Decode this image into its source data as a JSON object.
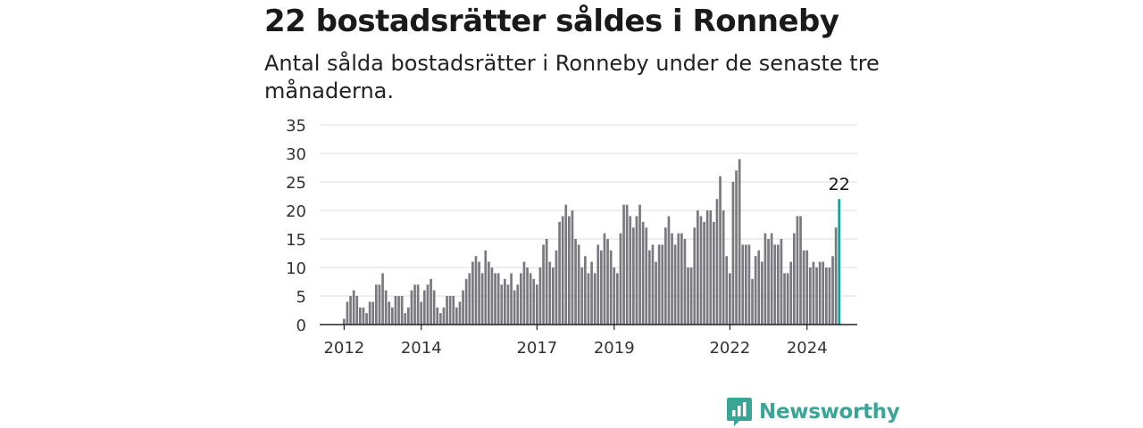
{
  "title": "22 bostadsrätter såldes i Ronneby",
  "subtitle": "Antal sålda bostadsrätter i Ronneby under de senaste tre månaderna.",
  "brand": "Newsworthy",
  "colors": {
    "bar": "#7b7980",
    "highlight": "#13a497",
    "brand": "#3aa597"
  },
  "chart_data": {
    "type": "bar",
    "title": "22 bostadsrätter såldes i Ronneby",
    "xlabel": "",
    "ylabel": "",
    "ylim": [
      0,
      35
    ],
    "yticks": [
      "0",
      "5",
      "10",
      "15",
      "20",
      "25",
      "30",
      "35"
    ],
    "xticks": [
      "2012",
      "2014",
      "2017",
      "2019",
      "2022",
      "2024"
    ],
    "grid": true,
    "start": "2012-01",
    "interval": "month",
    "highlight_label": "22",
    "values": [
      1,
      4,
      5,
      6,
      5,
      3,
      3,
      2,
      4,
      4,
      7,
      7,
      9,
      6,
      4,
      3,
      5,
      5,
      5,
      2,
      3,
      6,
      7,
      7,
      4,
      6,
      7,
      8,
      6,
      3,
      2,
      3,
      5,
      5,
      5,
      3,
      4,
      6,
      8,
      9,
      11,
      12,
      11,
      9,
      13,
      11,
      10,
      9,
      9,
      7,
      8,
      7,
      9,
      6,
      7,
      9,
      11,
      10,
      9,
      8,
      7,
      10,
      14,
      15,
      11,
      10,
      13,
      18,
      19,
      21,
      19,
      20,
      15,
      14,
      10,
      12,
      9,
      11,
      9,
      14,
      13,
      16,
      15,
      13,
      10,
      9,
      16,
      21,
      21,
      19,
      17,
      19,
      21,
      18,
      17,
      13,
      14,
      11,
      14,
      14,
      17,
      19,
      16,
      14,
      16,
      16,
      15,
      10,
      10,
      17,
      20,
      19,
      18,
      20,
      20,
      18,
      22,
      26,
      20,
      12,
      9,
      25,
      27,
      29,
      14,
      14,
      14,
      8,
      12,
      13,
      11,
      16,
      15,
      16,
      14,
      14,
      15,
      9,
      9,
      11,
      16,
      19,
      19,
      13,
      13,
      10,
      11,
      10,
      11,
      11,
      10,
      10,
      12,
      17,
      22
    ]
  }
}
